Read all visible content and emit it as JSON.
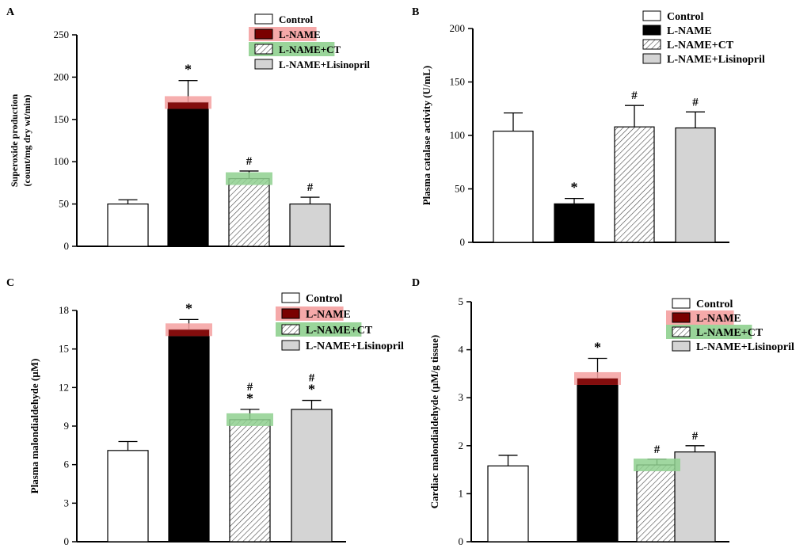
{
  "chart_data": [
    {
      "type": "bar",
      "panel_label": "A",
      "ylabel_line1": "Superoxide production",
      "ylabel_line2": "(count/mg dry wt/min)",
      "ylim": [
        0,
        250
      ],
      "yticks": [
        0,
        50,
        100,
        150,
        200,
        250
      ],
      "categories": [
        "Control",
        "L-NAME",
        "L-NAME+CT",
        "L-NAME+Lisinopril"
      ],
      "values": [
        50,
        170,
        80,
        50
      ],
      "errors": [
        5,
        26,
        9,
        8
      ],
      "annotations": [
        "",
        "*",
        "#",
        "#"
      ],
      "legend_position": "top-right",
      "legend": [
        {
          "label": "Control",
          "highlight": ""
        },
        {
          "label": "L-NAME",
          "highlight": "#f4a0a0"
        },
        {
          "label": "L-NAME+CT",
          "highlight": "#8fd08f"
        },
        {
          "label": "L-NAME+Lisinopril",
          "highlight": ""
        }
      ],
      "highlight_bars": [
        {
          "index": 1,
          "color": "#f4a0a0"
        },
        {
          "index": 2,
          "color": "#8fd08f"
        }
      ]
    },
    {
      "type": "bar",
      "panel_label": "B",
      "ylabel_line1": "Plasma catalase activity (U/mL)",
      "ylabel_line2": "",
      "ylim": [
        0,
        200
      ],
      "yticks": [
        0,
        50,
        100,
        150,
        200
      ],
      "categories": [
        "Control",
        "L-NAME",
        "L-NAME+CT",
        "L-NAME+Lisinopril"
      ],
      "values": [
        104,
        36,
        108,
        107
      ],
      "errors": [
        17,
        5,
        20,
        15
      ],
      "annotations": [
        "",
        "*",
        "#",
        "#"
      ],
      "legend_position": "top-right",
      "legend": [
        {
          "label": "Control",
          "highlight": ""
        },
        {
          "label": "L-NAME",
          "highlight": ""
        },
        {
          "label": "L-NAME+CT",
          "highlight": ""
        },
        {
          "label": "L-NAME+Lisinopril",
          "highlight": ""
        }
      ],
      "highlight_bars": []
    },
    {
      "type": "bar",
      "panel_label": "C",
      "ylabel_line1": "Plasma malondialdehyde (µM)",
      "ylabel_line2": "",
      "ylim": [
        0,
        18
      ],
      "yticks": [
        0,
        3,
        6,
        9,
        12,
        15,
        18
      ],
      "categories": [
        "Control",
        "L-NAME",
        "L-NAME+CT",
        "L-NAME+Lisinopril"
      ],
      "values": [
        7.1,
        16.5,
        9.5,
        10.3
      ],
      "errors": [
        0.7,
        0.8,
        0.8,
        0.7
      ],
      "annotations": [
        "",
        "*",
        "#\n*",
        "#\n*"
      ],
      "legend_position": "top-right",
      "legend": [
        {
          "label": "Control",
          "highlight": ""
        },
        {
          "label": "L-NAME",
          "highlight": "#f4a0a0"
        },
        {
          "label": "L-NAME+CT",
          "highlight": "#8fd08f"
        },
        {
          "label": "L-NAME+Lisinopril",
          "highlight": ""
        }
      ],
      "highlight_bars": [
        {
          "index": 1,
          "color": "#f4a0a0"
        },
        {
          "index": 2,
          "color": "#8fd08f"
        }
      ]
    },
    {
      "type": "bar",
      "panel_label": "D",
      "ylabel_line1": "Cardiac malondialdehyde (µM/g tissue)",
      "ylabel_line2": "",
      "ylim": [
        0,
        5
      ],
      "yticks": [
        0,
        1,
        2,
        3,
        4,
        5
      ],
      "categories": [
        "Control",
        "L-NAME",
        "L-NAME+CT",
        "L-NAME+Lisinopril"
      ],
      "values": [
        1.58,
        3.4,
        1.6,
        1.87
      ],
      "errors": [
        0.22,
        0.42,
        0.12,
        0.13
      ],
      "annotations": [
        "",
        "*",
        "#",
        "#"
      ],
      "legend_position": "top-right",
      "legend": [
        {
          "label": "Control",
          "highlight": ""
        },
        {
          "label": "L-NAME",
          "highlight": "#f4a0a0"
        },
        {
          "label": "L-NAME+CT",
          "highlight": "#8fd08f"
        },
        {
          "label": "L-NAME+Lisinopril",
          "highlight": ""
        }
      ],
      "highlight_bars": [
        {
          "index": 1,
          "color": "#f4a0a0"
        },
        {
          "index": 2,
          "color": "#8fd08f"
        }
      ]
    }
  ]
}
